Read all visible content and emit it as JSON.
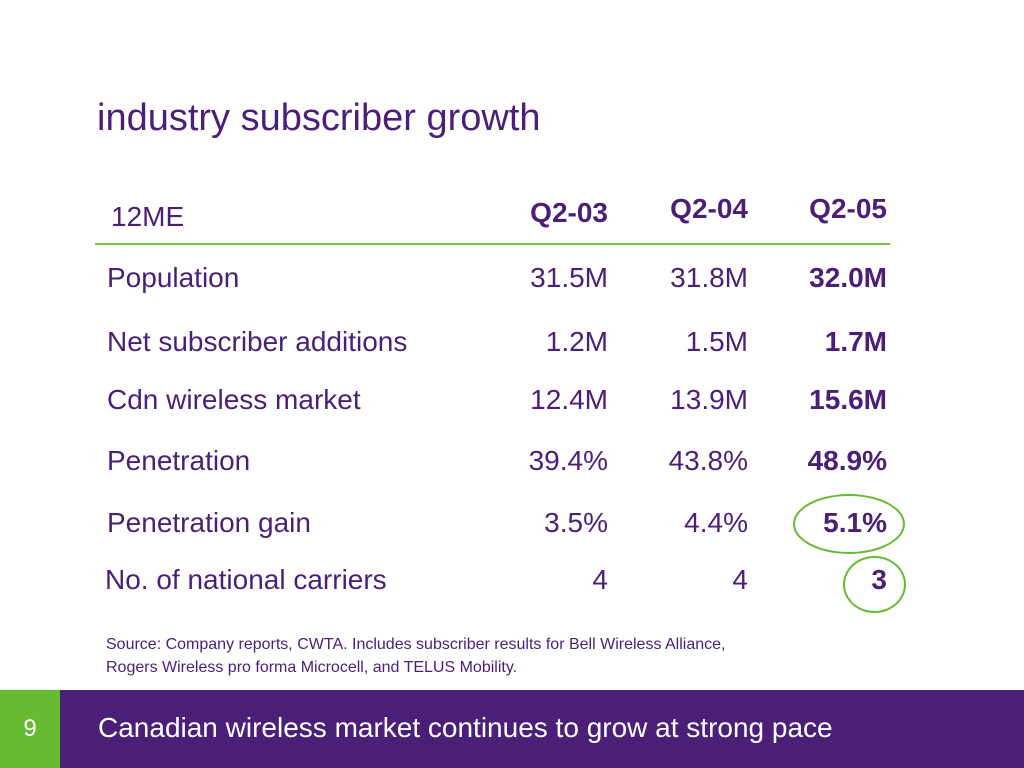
{
  "slide": {
    "title": "industry subscriber growth",
    "page_number": "9",
    "footer_text": "Canadian wireless market continues to grow at strong pace",
    "accent_green": "#66bb33",
    "brand_purple": "#4b1f78"
  },
  "table": {
    "header_label": "12ME",
    "columns": [
      "Q2-03",
      "Q2-04",
      "Q2-05"
    ],
    "rows": [
      {
        "label": "Population",
        "values": [
          "31.5M",
          "31.8M",
          "32.0M"
        ]
      },
      {
        "label": "Net subscriber additions",
        "values": [
          "1.2M",
          "1.5M",
          "1.7M"
        ]
      },
      {
        "label": "Cdn wireless market",
        "values": [
          "12.4M",
          "13.9M",
          "15.6M"
        ]
      },
      {
        "label": "Penetration",
        "values": [
          "39.4%",
          "43.8%",
          "48.9%"
        ]
      },
      {
        "label": "Penetration gain",
        "values": [
          "3.5%",
          "4.4%",
          "5.1%"
        ]
      },
      {
        "label": "No. of national carriers",
        "values": [
          "4",
          "4",
          "3"
        ]
      }
    ]
  },
  "source_note": {
    "line1": "Source: Company reports, CWTA. Includes subscriber results for Bell Wireless Alliance,",
    "line2": "Rogers Wireless pro forma Microcell,  and TELUS Mobility."
  }
}
